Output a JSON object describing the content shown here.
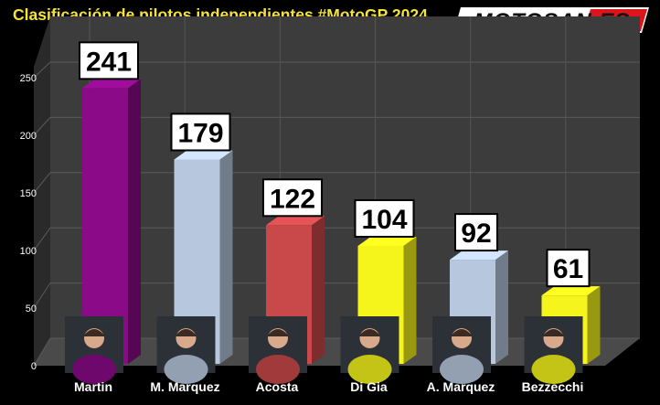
{
  "header": {
    "title": "Clasificación de pilotos independientes #MotoGP 2024",
    "logo_text": "MOTOSAN.ES"
  },
  "chart_data": {
    "type": "bar",
    "title": "Clasificación de pilotos independientes #MotoGP 2024",
    "categories": [
      "Martin",
      "M. Marquez",
      "Acosta",
      "Di Gia",
      "A. Marquez",
      "Bezzecchi"
    ],
    "values": [
      241,
      179,
      122,
      104,
      92,
      61
    ],
    "colors": [
      "#8b0a87",
      "#b7c8de",
      "#c9494a",
      "#f5f51c",
      "#b7c8de",
      "#f5f51c"
    ],
    "avatar_names": [
      "martin-avatar",
      "m-marquez-avatar",
      "acosta-avatar",
      "di-gia-avatar",
      "a-marquez-avatar",
      "bezzecchi-avatar"
    ],
    "ylim": [
      0,
      250
    ],
    "yticks": [
      0,
      50,
      100,
      150,
      200,
      250
    ],
    "grid": true,
    "style": "3d-column",
    "xlabel": "",
    "ylabel": ""
  }
}
